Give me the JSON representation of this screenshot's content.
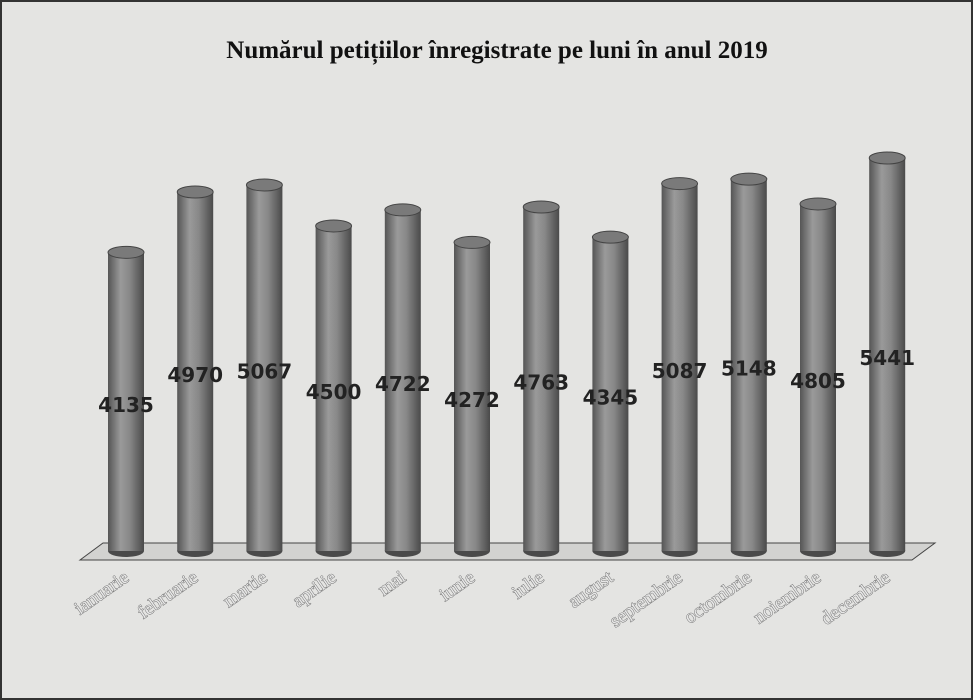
{
  "chart_data": {
    "type": "bar",
    "title": "Numărul petițiilor înregistrate pe luni în anul 2019",
    "categories": [
      "ianuarie",
      "februarie",
      "martie",
      "aprilie",
      "mai",
      "iunie",
      "iulie",
      "august",
      "septembrie",
      "octombrie",
      "noiembrie",
      "decembrie"
    ],
    "values": [
      4135,
      4970,
      5067,
      4500,
      4722,
      4272,
      4763,
      4345,
      5087,
      5148,
      4805,
      5441
    ],
    "color": "#7a7a7a"
  }
}
